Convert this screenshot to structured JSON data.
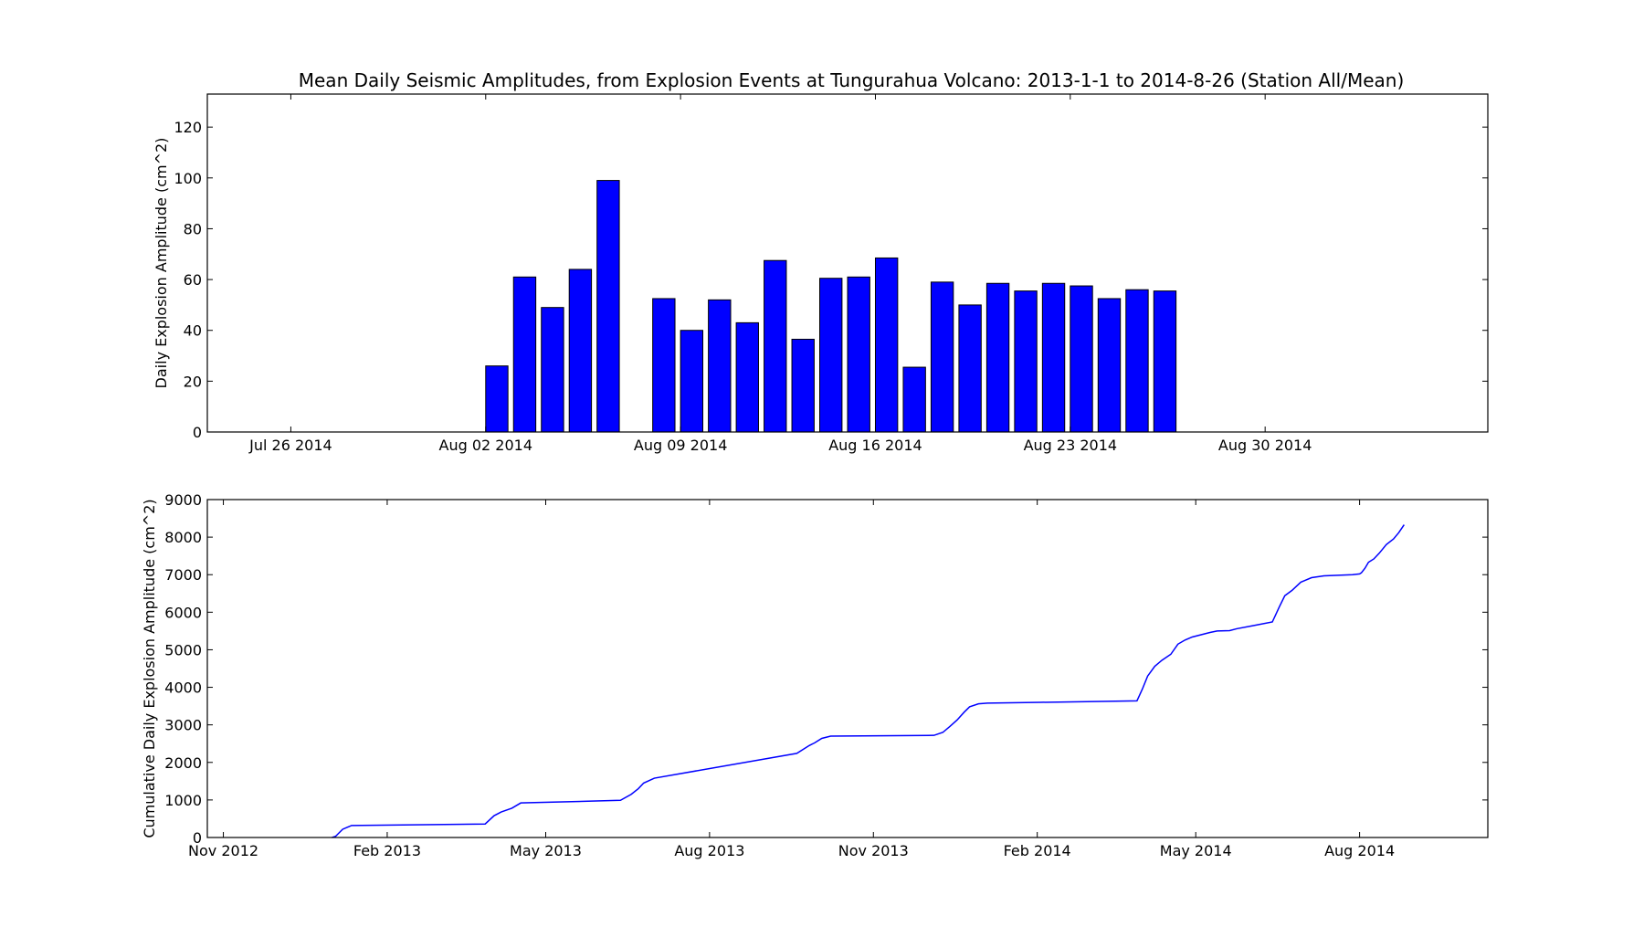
{
  "chart_data": [
    {
      "type": "bar",
      "title": "Mean Daily Seismic Amplitudes, from Explosion Events at Tungurahua Volcano: 2013-1-1 to 2014-8-26 (Station All/Mean)",
      "ylabel": "Daily Explosion Amplitude (cm^2)",
      "xlim": [
        "2014-07-23",
        "2014-09-07"
      ],
      "ylim": [
        0,
        133
      ],
      "xticks": [
        {
          "date": "2014-07-26",
          "label": "Jul 26 2014"
        },
        {
          "date": "2014-08-02",
          "label": "Aug 02 2014"
        },
        {
          "date": "2014-08-09",
          "label": "Aug 09 2014"
        },
        {
          "date": "2014-08-16",
          "label": "Aug 16 2014"
        },
        {
          "date": "2014-08-23",
          "label": "Aug 23 2014"
        },
        {
          "date": "2014-08-30",
          "label": "Aug 30 2014"
        }
      ],
      "yticks": [
        0,
        20,
        40,
        60,
        80,
        100,
        120
      ],
      "bars": [
        {
          "date": "2014-08-02",
          "value": 26
        },
        {
          "date": "2014-08-03",
          "value": 61
        },
        {
          "date": "2014-08-04",
          "value": 49
        },
        {
          "date": "2014-08-05",
          "value": 64
        },
        {
          "date": "2014-08-06",
          "value": 99
        },
        {
          "date": "2014-08-08",
          "value": 52.5
        },
        {
          "date": "2014-08-09",
          "value": 40
        },
        {
          "date": "2014-08-10",
          "value": 52
        },
        {
          "date": "2014-08-11",
          "value": 43
        },
        {
          "date": "2014-08-12",
          "value": 67.5
        },
        {
          "date": "2014-08-13",
          "value": 36.5
        },
        {
          "date": "2014-08-14",
          "value": 60.5
        },
        {
          "date": "2014-08-15",
          "value": 61
        },
        {
          "date": "2014-08-16",
          "value": 68.5
        },
        {
          "date": "2014-08-17",
          "value": 25.5
        },
        {
          "date": "2014-08-18",
          "value": 59
        },
        {
          "date": "2014-08-19",
          "value": 50
        },
        {
          "date": "2014-08-20",
          "value": 58.5
        },
        {
          "date": "2014-08-21",
          "value": 55.5
        },
        {
          "date": "2014-08-22",
          "value": 58.5
        },
        {
          "date": "2014-08-23",
          "value": 57.5
        },
        {
          "date": "2014-08-24",
          "value": 52.5
        },
        {
          "date": "2014-08-25",
          "value": 56
        },
        {
          "date": "2014-08-26",
          "value": 55.5
        }
      ],
      "color": "#0000ff"
    },
    {
      "type": "line",
      "ylabel": "Cumulative Daily Explosion Amplitude (cm^2)",
      "xlim": [
        "2012-10-23",
        "2014-10-12"
      ],
      "ylim": [
        0,
        9000
      ],
      "xticks": [
        {
          "date": "2012-11-01",
          "label": "Nov 2012"
        },
        {
          "date": "2013-02-01",
          "label": "Feb 2013"
        },
        {
          "date": "2013-05-01",
          "label": "May 2013"
        },
        {
          "date": "2013-08-01",
          "label": "Aug 2013"
        },
        {
          "date": "2013-11-01",
          "label": "Nov 2013"
        },
        {
          "date": "2014-02-01",
          "label": "Feb 2014"
        },
        {
          "date": "2014-05-01",
          "label": "May 2014"
        },
        {
          "date": "2014-08-01",
          "label": "Aug 2014"
        }
      ],
      "yticks": [
        0,
        1000,
        2000,
        3000,
        4000,
        5000,
        6000,
        7000,
        8000,
        9000
      ],
      "series": [
        {
          "color": "#0000ff",
          "points": [
            [
              "2013-01-01",
              0
            ],
            [
              "2013-01-03",
              30
            ],
            [
              "2013-01-07",
              220
            ],
            [
              "2013-01-12",
              320
            ],
            [
              "2013-03-28",
              360
            ],
            [
              "2013-04-02",
              580
            ],
            [
              "2013-04-06",
              680
            ],
            [
              "2013-04-12",
              780
            ],
            [
              "2013-04-17",
              920
            ],
            [
              "2013-06-12",
              990
            ],
            [
              "2013-06-18",
              1150
            ],
            [
              "2013-06-22",
              1300
            ],
            [
              "2013-06-25",
              1450
            ],
            [
              "2013-07-01",
              1580
            ],
            [
              "2013-09-19",
              2240
            ],
            [
              "2013-09-26",
              2450
            ],
            [
              "2013-09-29",
              2520
            ],
            [
              "2013-10-03",
              2640
            ],
            [
              "2013-10-08",
              2700
            ],
            [
              "2013-12-05",
              2720
            ],
            [
              "2013-12-10",
              2800
            ],
            [
              "2013-12-14",
              2960
            ],
            [
              "2013-12-18",
              3130
            ],
            [
              "2013-12-22",
              3340
            ],
            [
              "2013-12-25",
              3480
            ],
            [
              "2013-12-30",
              3560
            ],
            [
              "2014-01-04",
              3580
            ],
            [
              "2014-02-03",
              3600
            ],
            [
              "2014-03-29",
              3640
            ],
            [
              "2014-04-01",
              3950
            ],
            [
              "2014-04-04",
              4300
            ],
            [
              "2014-04-08",
              4560
            ],
            [
              "2014-04-12",
              4720
            ],
            [
              "2014-04-17",
              4880
            ],
            [
              "2014-04-21",
              5150
            ],
            [
              "2014-04-25",
              5260
            ],
            [
              "2014-04-29",
              5340
            ],
            [
              "2014-05-09",
              5460
            ],
            [
              "2014-05-13",
              5500
            ],
            [
              "2014-05-20",
              5510
            ],
            [
              "2014-05-24",
              5560
            ],
            [
              "2014-06-02",
              5640
            ],
            [
              "2014-06-13",
              5740
            ],
            [
              "2014-06-17",
              6150
            ],
            [
              "2014-06-20",
              6440
            ],
            [
              "2014-06-24",
              6580
            ],
            [
              "2014-06-29",
              6800
            ],
            [
              "2014-07-05",
              6920
            ],
            [
              "2014-07-12",
              6970
            ],
            [
              "2014-07-28",
              7000
            ],
            [
              "2014-08-01",
              7020
            ],
            [
              "2014-08-02",
              7050
            ],
            [
              "2014-08-04",
              7170
            ],
            [
              "2014-08-06",
              7330
            ],
            [
              "2014-08-09",
              7420
            ],
            [
              "2014-08-12",
              7570
            ],
            [
              "2014-08-16",
              7800
            ],
            [
              "2014-08-20",
              7950
            ],
            [
              "2014-08-23",
              8120
            ],
            [
              "2014-08-26",
              8330
            ]
          ]
        }
      ]
    }
  ]
}
